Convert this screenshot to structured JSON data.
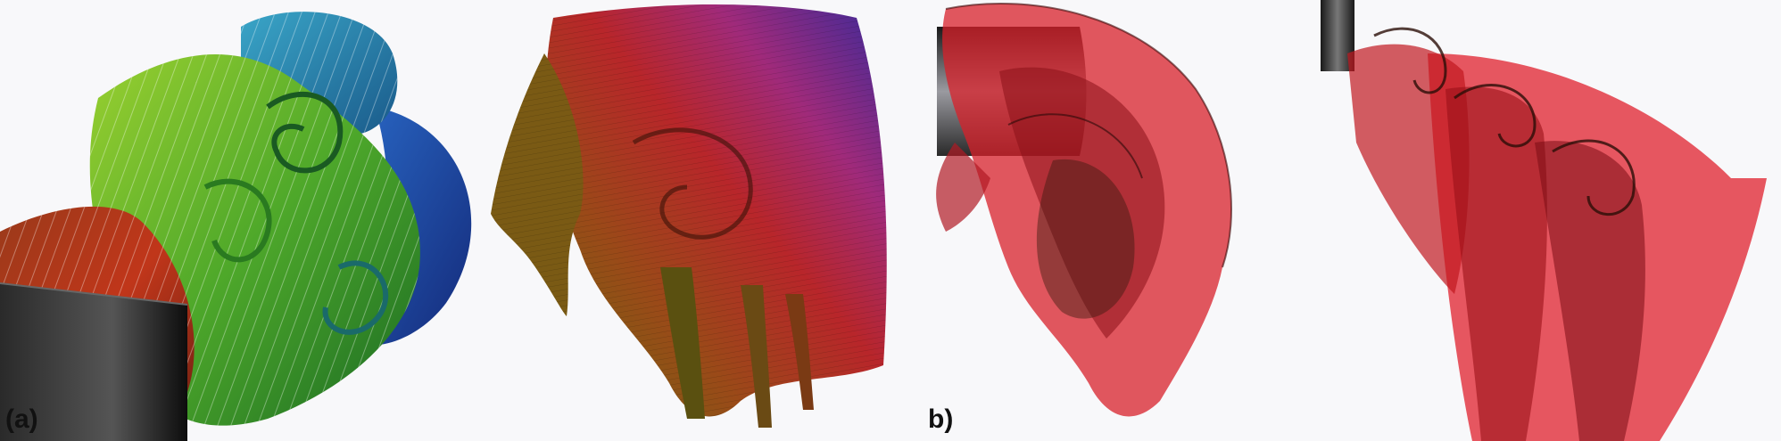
{
  "figure": {
    "labels": {
      "a": "(a)",
      "b": "(b)"
    },
    "colors": {
      "background": "#f8f8fa",
      "cylinder_dark": "#1a1a1a",
      "cylinder_light": "#9a9aa0",
      "panel1": [
        "#c0361a",
        "#a34a20",
        "#6fb82a",
        "#2d9a3a",
        "#1f7cc0",
        "#1a3aa8"
      ],
      "panel2": [
        "#5a6a10",
        "#8a5a18",
        "#b8262a",
        "#b02a6a",
        "#6a2ab0",
        "#3a2a9a"
      ],
      "panel3": [
        "#d8202a",
        "#8a1018",
        "#3a1a10"
      ],
      "panel4": [
        "#e0202c",
        "#9a1018",
        "#2a0e08"
      ]
    }
  }
}
